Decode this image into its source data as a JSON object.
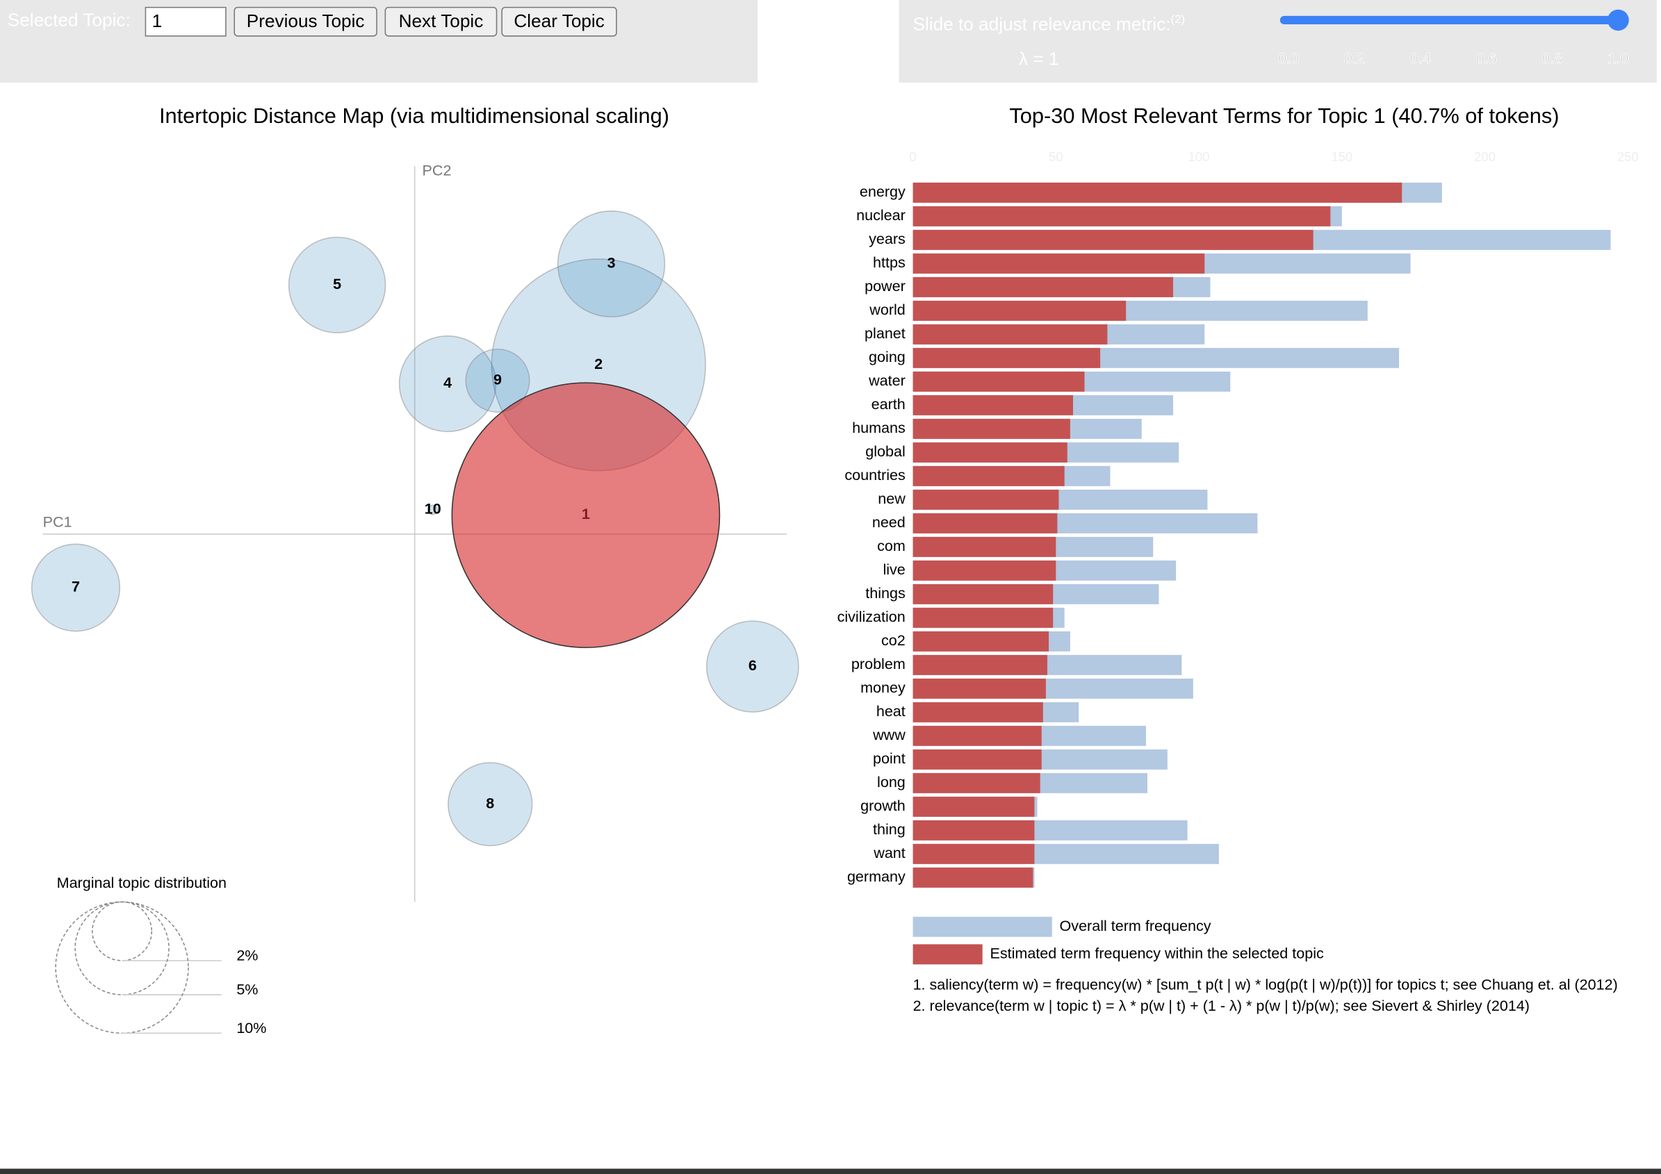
{
  "controls": {
    "selected_topic_label": "Selected Topic:",
    "selected_topic": 1,
    "buttons": [
      "Previous Topic",
      "Next Topic",
      "Clear Topic"
    ]
  },
  "relevance_slider": {
    "label": "Slide to adjust relevance metric:",
    "note": "(2)",
    "lambda_label": "λ = 1",
    "value": 1,
    "ticks": [
      {
        "value": 0,
        "label": "0.0"
      },
      {
        "value": 0.2,
        "label": "0.2"
      },
      {
        "value": 0.4,
        "label": "0.4"
      },
      {
        "value": 0.6,
        "label": "0.6"
      },
      {
        "value": 0.8,
        "label": "0.8"
      },
      {
        "value": 1,
        "label": "1.0"
      }
    ]
  },
  "chart_data": [
    {
      "type": "bubble",
      "title": "Intertopic Distance Map (via multidimensional scaling)",
      "xlabel": "PC1",
      "ylabel": "PC2",
      "xlim": [
        -0.35,
        0.35
      ],
      "ylim": [
        -0.35,
        0.35
      ],
      "topics": [
        1,
        2,
        3,
        4,
        5,
        6,
        7,
        8,
        9,
        10
      ],
      "x": [
        0.161,
        0.173,
        0.185,
        0.031,
        -0.073,
        0.318,
        -0.319,
        0.071,
        0.078,
        0.017
      ],
      "y": [
        0.018,
        0.161,
        0.257,
        0.143,
        0.237,
        -0.126,
        -0.051,
        -0.257,
        0.146,
        0.023
      ],
      "sizes": [
        40.7,
        26,
        6.5,
        5.3,
        5.3,
        4.8,
        4.4,
        4.0,
        2.3,
        0.05
      ],
      "color": "#1f77b433",
      "selected_color": "#d6272899",
      "size_legend": {
        "title": "Marginal topic distribution",
        "values": [
          2,
          5,
          10
        ],
        "value_labels": [
          "2%",
          "5%",
          "10%"
        ]
      }
    },
    {
      "type": "bar",
      "orientation": "horizontal",
      "title": "Top-30 Most Relevant Terms for Topic 1 (40.7% of tokens)",
      "categories": [
        "energy",
        "nuclear",
        "years",
        "https",
        "power",
        "world",
        "planet",
        "going",
        "water",
        "earth",
        "humans",
        "global",
        "countries",
        "new",
        "need",
        "com",
        "live",
        "things",
        "civilization",
        "co2",
        "problem",
        "money",
        "heat",
        "www",
        "point",
        "long",
        "growth",
        "thing",
        "want",
        "germany"
      ],
      "series": [
        {
          "name": "Overall term frequency",
          "color": "#b3c8e1",
          "values": [
            185,
            150,
            244,
            174,
            104,
            159,
            102,
            170,
            111,
            91,
            80,
            93,
            69,
            103,
            120.5,
            84,
            92,
            86,
            53,
            55,
            94,
            98,
            58,
            81.5,
            89,
            82,
            43.5,
            96,
            107,
            42.5
          ]
        },
        {
          "name": "Estimated term frequency within the selected topic",
          "color": "#c45252",
          "values": [
            171,
            146,
            140,
            102,
            91,
            74.5,
            68,
            65.5,
            60,
            56,
            55,
            54,
            53,
            51,
            50.5,
            50,
            50,
            49,
            49,
            47.5,
            47,
            46.5,
            45.5,
            45,
            45,
            44.5,
            42.5,
            42.5,
            42.5,
            42
          ]
        }
      ],
      "xlim": [
        0,
        250
      ],
      "xticks": [
        0,
        50,
        100,
        150,
        200,
        250
      ],
      "footnotes": [
        "1. saliency(term w) = frequency(w) * [sum_t p(t | w) * log(p(t | w)/p(t))] for topics t; see Chuang et. al (2012)",
        "2. relevance(term w | topic t) = λ * p(w | t) + (1 - λ) * p(w | t)/p(w); see Sievert & Shirley (2014)"
      ]
    }
  ]
}
